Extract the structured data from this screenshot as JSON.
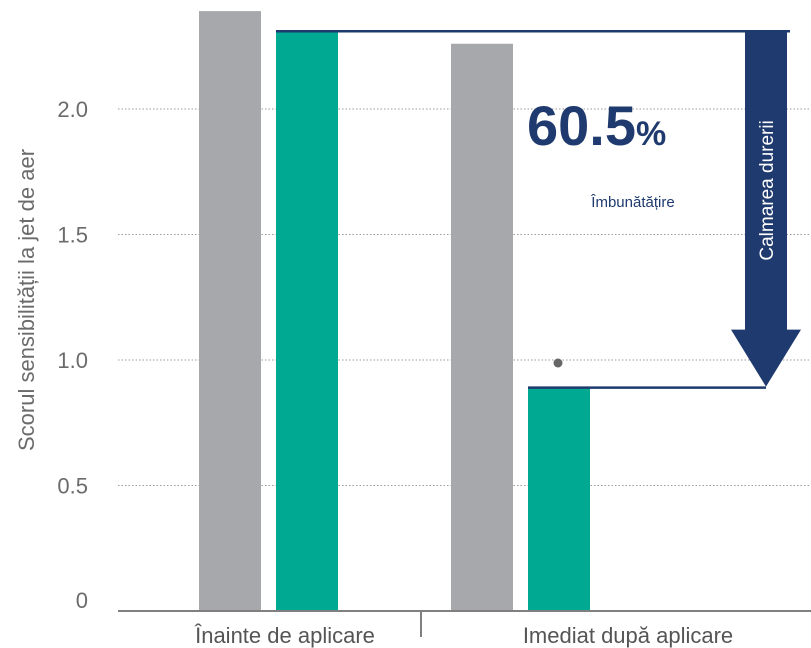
{
  "chart_data": {
    "type": "bar",
    "categories": [
      "Înainte de aplicare",
      "Imediat după aplicare"
    ],
    "series": [
      {
        "values": [
          2.39,
          2.26
        ],
        "color": "#a7a8ab"
      },
      {
        "values": [
          2.31,
          0.89
        ],
        "color": "#00a991"
      }
    ],
    "ylabel": "Scorul sensibilității la jet de aer",
    "ylim": [
      0,
      2.4
    ],
    "yticks": [
      0,
      0.5,
      1.0,
      1.5,
      2.0
    ],
    "ytick_labels": [
      "0",
      "0.5",
      "1.0",
      "1.5",
      "2.0"
    ],
    "grid": true,
    "annotations": {
      "percent_value": "60.5",
      "percent_sign": "%",
      "improvement_label": "Îmbunătățire",
      "arrow_label": "Calmarea durerii",
      "significance_marker": "•",
      "accent_color": "#1f3a6e"
    }
  }
}
